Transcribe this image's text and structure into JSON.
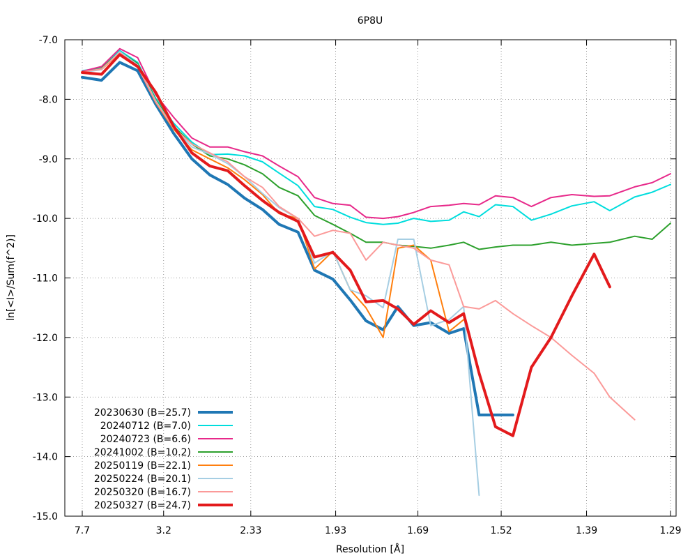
{
  "chart_data": {
    "type": "line",
    "title": "6P8U",
    "xlabel": "Resolution [Å]",
    "ylabel": "ln[<I>/Sum(f^2)]",
    "x_scale": "inverse-square resolution",
    "x_tick_labels": [
      "7.7",
      "3.2",
      "2.33",
      "1.93",
      "1.69",
      "1.52",
      "1.39",
      "1.29"
    ],
    "xlim": [
      7.7,
      1.29
    ],
    "ylim": [
      -15.0,
      -7.0
    ],
    "y_ticks": [
      -15.0,
      -14.0,
      -13.0,
      -12.0,
      -11.0,
      -10.0,
      -9.0,
      -8.0,
      -7.0
    ],
    "y_tick_labels": [
      "-15.0",
      "-14.0",
      "-13.0",
      "-12.0",
      "-11.0",
      "-10.0",
      "-9.0",
      "-8.0",
      "-7.0"
    ],
    "grid": true,
    "legend_position": "bottom-left",
    "series": [
      {
        "name": "20230630 (B=25.7)",
        "color": "#1f77b4",
        "width": 4,
        "x": [
          7.7,
          5.27,
          4.3,
          3.73,
          3.34,
          3.05,
          2.82,
          2.64,
          2.49,
          2.37,
          2.26,
          2.17,
          2.08,
          2.01,
          1.94,
          1.88,
          1.83,
          1.78,
          1.74,
          1.7,
          1.66,
          1.62,
          1.59,
          1.56,
          1.53,
          1.5
        ],
        "y": [
          -7.63,
          -7.68,
          -7.38,
          -7.52,
          -8.08,
          -8.57,
          -9.0,
          -9.27,
          -9.43,
          -9.66,
          -9.85,
          -10.1,
          -10.23,
          -10.87,
          -11.02,
          -11.37,
          -11.72,
          -11.87,
          -11.48,
          -11.8,
          -11.75,
          -11.93,
          -11.85,
          -13.3,
          -13.3,
          -13.3
        ]
      },
      {
        "name": "20240712 (B=7.0)",
        "color": "#00dddd",
        "width": 2,
        "x": [
          7.7,
          5.27,
          4.3,
          3.73,
          3.34,
          3.05,
          2.82,
          2.64,
          2.49,
          2.37,
          2.26,
          2.17,
          2.08,
          2.01,
          1.94,
          1.88,
          1.83,
          1.78,
          1.74,
          1.7,
          1.66,
          1.62,
          1.59,
          1.56,
          1.53,
          1.5,
          1.47,
          1.44,
          1.41,
          1.38,
          1.36,
          1.33,
          1.31,
          1.29
        ],
        "y": [
          -7.52,
          -7.47,
          -7.18,
          -7.38,
          -7.98,
          -8.4,
          -8.72,
          -8.93,
          -8.92,
          -8.95,
          -9.05,
          -9.24,
          -9.45,
          -9.8,
          -9.85,
          -9.98,
          -10.07,
          -10.1,
          -10.08,
          -10.0,
          -10.05,
          -10.03,
          -9.89,
          -9.97,
          -9.77,
          -9.8,
          -10.03,
          -9.93,
          -9.79,
          -9.72,
          -9.87,
          -9.64,
          -9.56,
          -9.43
        ]
      },
      {
        "name": "20240723 (B=6.6)",
        "color": "#e7298a",
        "width": 2,
        "x": [
          7.7,
          5.27,
          4.3,
          3.73,
          3.34,
          3.05,
          2.82,
          2.64,
          2.49,
          2.37,
          2.26,
          2.17,
          2.08,
          2.01,
          1.94,
          1.88,
          1.83,
          1.78,
          1.74,
          1.7,
          1.66,
          1.62,
          1.59,
          1.56,
          1.53,
          1.5,
          1.47,
          1.44,
          1.41,
          1.38,
          1.36,
          1.33,
          1.31,
          1.29
        ],
        "y": [
          -7.53,
          -7.45,
          -7.15,
          -7.3,
          -7.92,
          -8.3,
          -8.65,
          -8.8,
          -8.8,
          -8.88,
          -8.95,
          -9.12,
          -9.3,
          -9.65,
          -9.75,
          -9.78,
          -9.98,
          -10.0,
          -9.97,
          -9.9,
          -9.8,
          -9.78,
          -9.75,
          -9.77,
          -9.62,
          -9.65,
          -9.8,
          -9.65,
          -9.6,
          -9.63,
          -9.62,
          -9.47,
          -9.4,
          -9.25
        ]
      },
      {
        "name": "20241002 (B=10.2)",
        "color": "#2ca02c",
        "width": 2,
        "x": [
          7.7,
          5.27,
          4.3,
          3.73,
          3.34,
          3.05,
          2.82,
          2.64,
          2.49,
          2.37,
          2.26,
          2.17,
          2.08,
          2.01,
          1.94,
          1.88,
          1.83,
          1.78,
          1.74,
          1.7,
          1.66,
          1.62,
          1.59,
          1.56,
          1.53,
          1.5,
          1.47,
          1.44,
          1.41,
          1.38,
          1.36,
          1.33,
          1.31,
          1.29
        ],
        "y": [
          -7.55,
          -7.48,
          -7.2,
          -7.4,
          -8.0,
          -8.45,
          -8.75,
          -8.95,
          -9.0,
          -9.1,
          -9.25,
          -9.48,
          -9.62,
          -9.95,
          -10.1,
          -10.25,
          -10.4,
          -10.4,
          -10.45,
          -10.47,
          -10.5,
          -10.45,
          -10.4,
          -10.52,
          -10.48,
          -10.45,
          -10.45,
          -10.4,
          -10.45,
          -10.42,
          -10.4,
          -10.3,
          -10.35,
          -10.08
        ]
      },
      {
        "name": "20250119 (B=22.1)",
        "color": "#ff7f0e",
        "width": 2,
        "x": [
          7.7,
          5.27,
          4.3,
          3.73,
          3.34,
          3.05,
          2.82,
          2.64,
          2.49,
          2.37,
          2.26,
          2.17,
          2.08,
          2.01,
          1.94,
          1.88,
          1.83,
          1.78,
          1.74,
          1.7,
          1.66,
          1.62,
          1.59
        ],
        "y": [
          -7.54,
          -7.5,
          -7.22,
          -7.45,
          -8.05,
          -8.5,
          -8.85,
          -9.0,
          -9.15,
          -9.35,
          -9.6,
          -9.92,
          -10.0,
          -10.85,
          -10.55,
          -11.2,
          -11.5,
          -12.0,
          -10.5,
          -10.45,
          -10.7,
          -11.9,
          -11.7
        ]
      },
      {
        "name": "20250224 (B=20.1)",
        "color": "#a6cee3",
        "width": 2,
        "x": [
          7.7,
          5.27,
          4.3,
          3.73,
          3.34,
          3.05,
          2.82,
          2.64,
          2.49,
          2.37,
          2.26,
          2.17,
          2.08,
          2.01,
          1.94,
          1.88,
          1.83,
          1.78,
          1.74,
          1.7,
          1.66,
          1.62,
          1.59,
          1.56
        ],
        "y": [
          -7.55,
          -7.5,
          -7.2,
          -7.42,
          -8.02,
          -8.48,
          -8.8,
          -8.92,
          -9.08,
          -9.3,
          -9.58,
          -9.82,
          -10.0,
          -10.75,
          -10.55,
          -11.2,
          -11.3,
          -11.5,
          -10.35,
          -10.35,
          -11.8,
          -11.7,
          -11.48,
          -14.65
        ]
      },
      {
        "name": "20250320 (B=16.7)",
        "color": "#fb9a99",
        "width": 2,
        "x": [
          7.7,
          5.27,
          4.3,
          3.73,
          3.34,
          3.05,
          2.82,
          2.64,
          2.49,
          2.37,
          2.26,
          2.17,
          2.08,
          2.01,
          1.94,
          1.88,
          1.83,
          1.78,
          1.74,
          1.7,
          1.66,
          1.62,
          1.59,
          1.56,
          1.53,
          1.5,
          1.47,
          1.44,
          1.41,
          1.38,
          1.36,
          1.33
        ],
        "y": [
          -7.54,
          -7.49,
          -7.22,
          -7.45,
          -8.04,
          -8.48,
          -8.75,
          -8.9,
          -9.05,
          -9.3,
          -9.48,
          -9.8,
          -10.0,
          -10.3,
          -10.2,
          -10.25,
          -10.7,
          -10.4,
          -10.45,
          -10.5,
          -10.7,
          -10.78,
          -11.48,
          -11.52,
          -11.38,
          -11.6,
          -11.8,
          -12.0,
          -12.3,
          -12.6,
          -13.0,
          -13.38
        ]
      },
      {
        "name": "20250327 (B=24.7)",
        "color": "#e31a1c",
        "width": 4,
        "x": [
          7.7,
          5.27,
          4.3,
          3.73,
          3.34,
          3.05,
          2.82,
          2.64,
          2.49,
          2.37,
          2.26,
          2.17,
          2.08,
          2.01,
          1.94,
          1.88,
          1.83,
          1.78,
          1.74,
          1.7,
          1.66,
          1.62,
          1.59,
          1.56,
          1.53,
          1.5,
          1.47,
          1.44,
          1.41,
          1.38,
          1.36
        ],
        "y": [
          -7.55,
          -7.58,
          -7.25,
          -7.45,
          -7.88,
          -8.45,
          -8.9,
          -9.12,
          -9.2,
          -9.45,
          -9.7,
          -9.9,
          -10.05,
          -10.65,
          -10.57,
          -10.87,
          -11.4,
          -11.38,
          -11.52,
          -11.78,
          -11.55,
          -11.75,
          -11.6,
          -12.6,
          -13.5,
          -13.65,
          -12.5,
          -12.0,
          -11.3,
          -10.6,
          -11.15
        ]
      }
    ]
  }
}
